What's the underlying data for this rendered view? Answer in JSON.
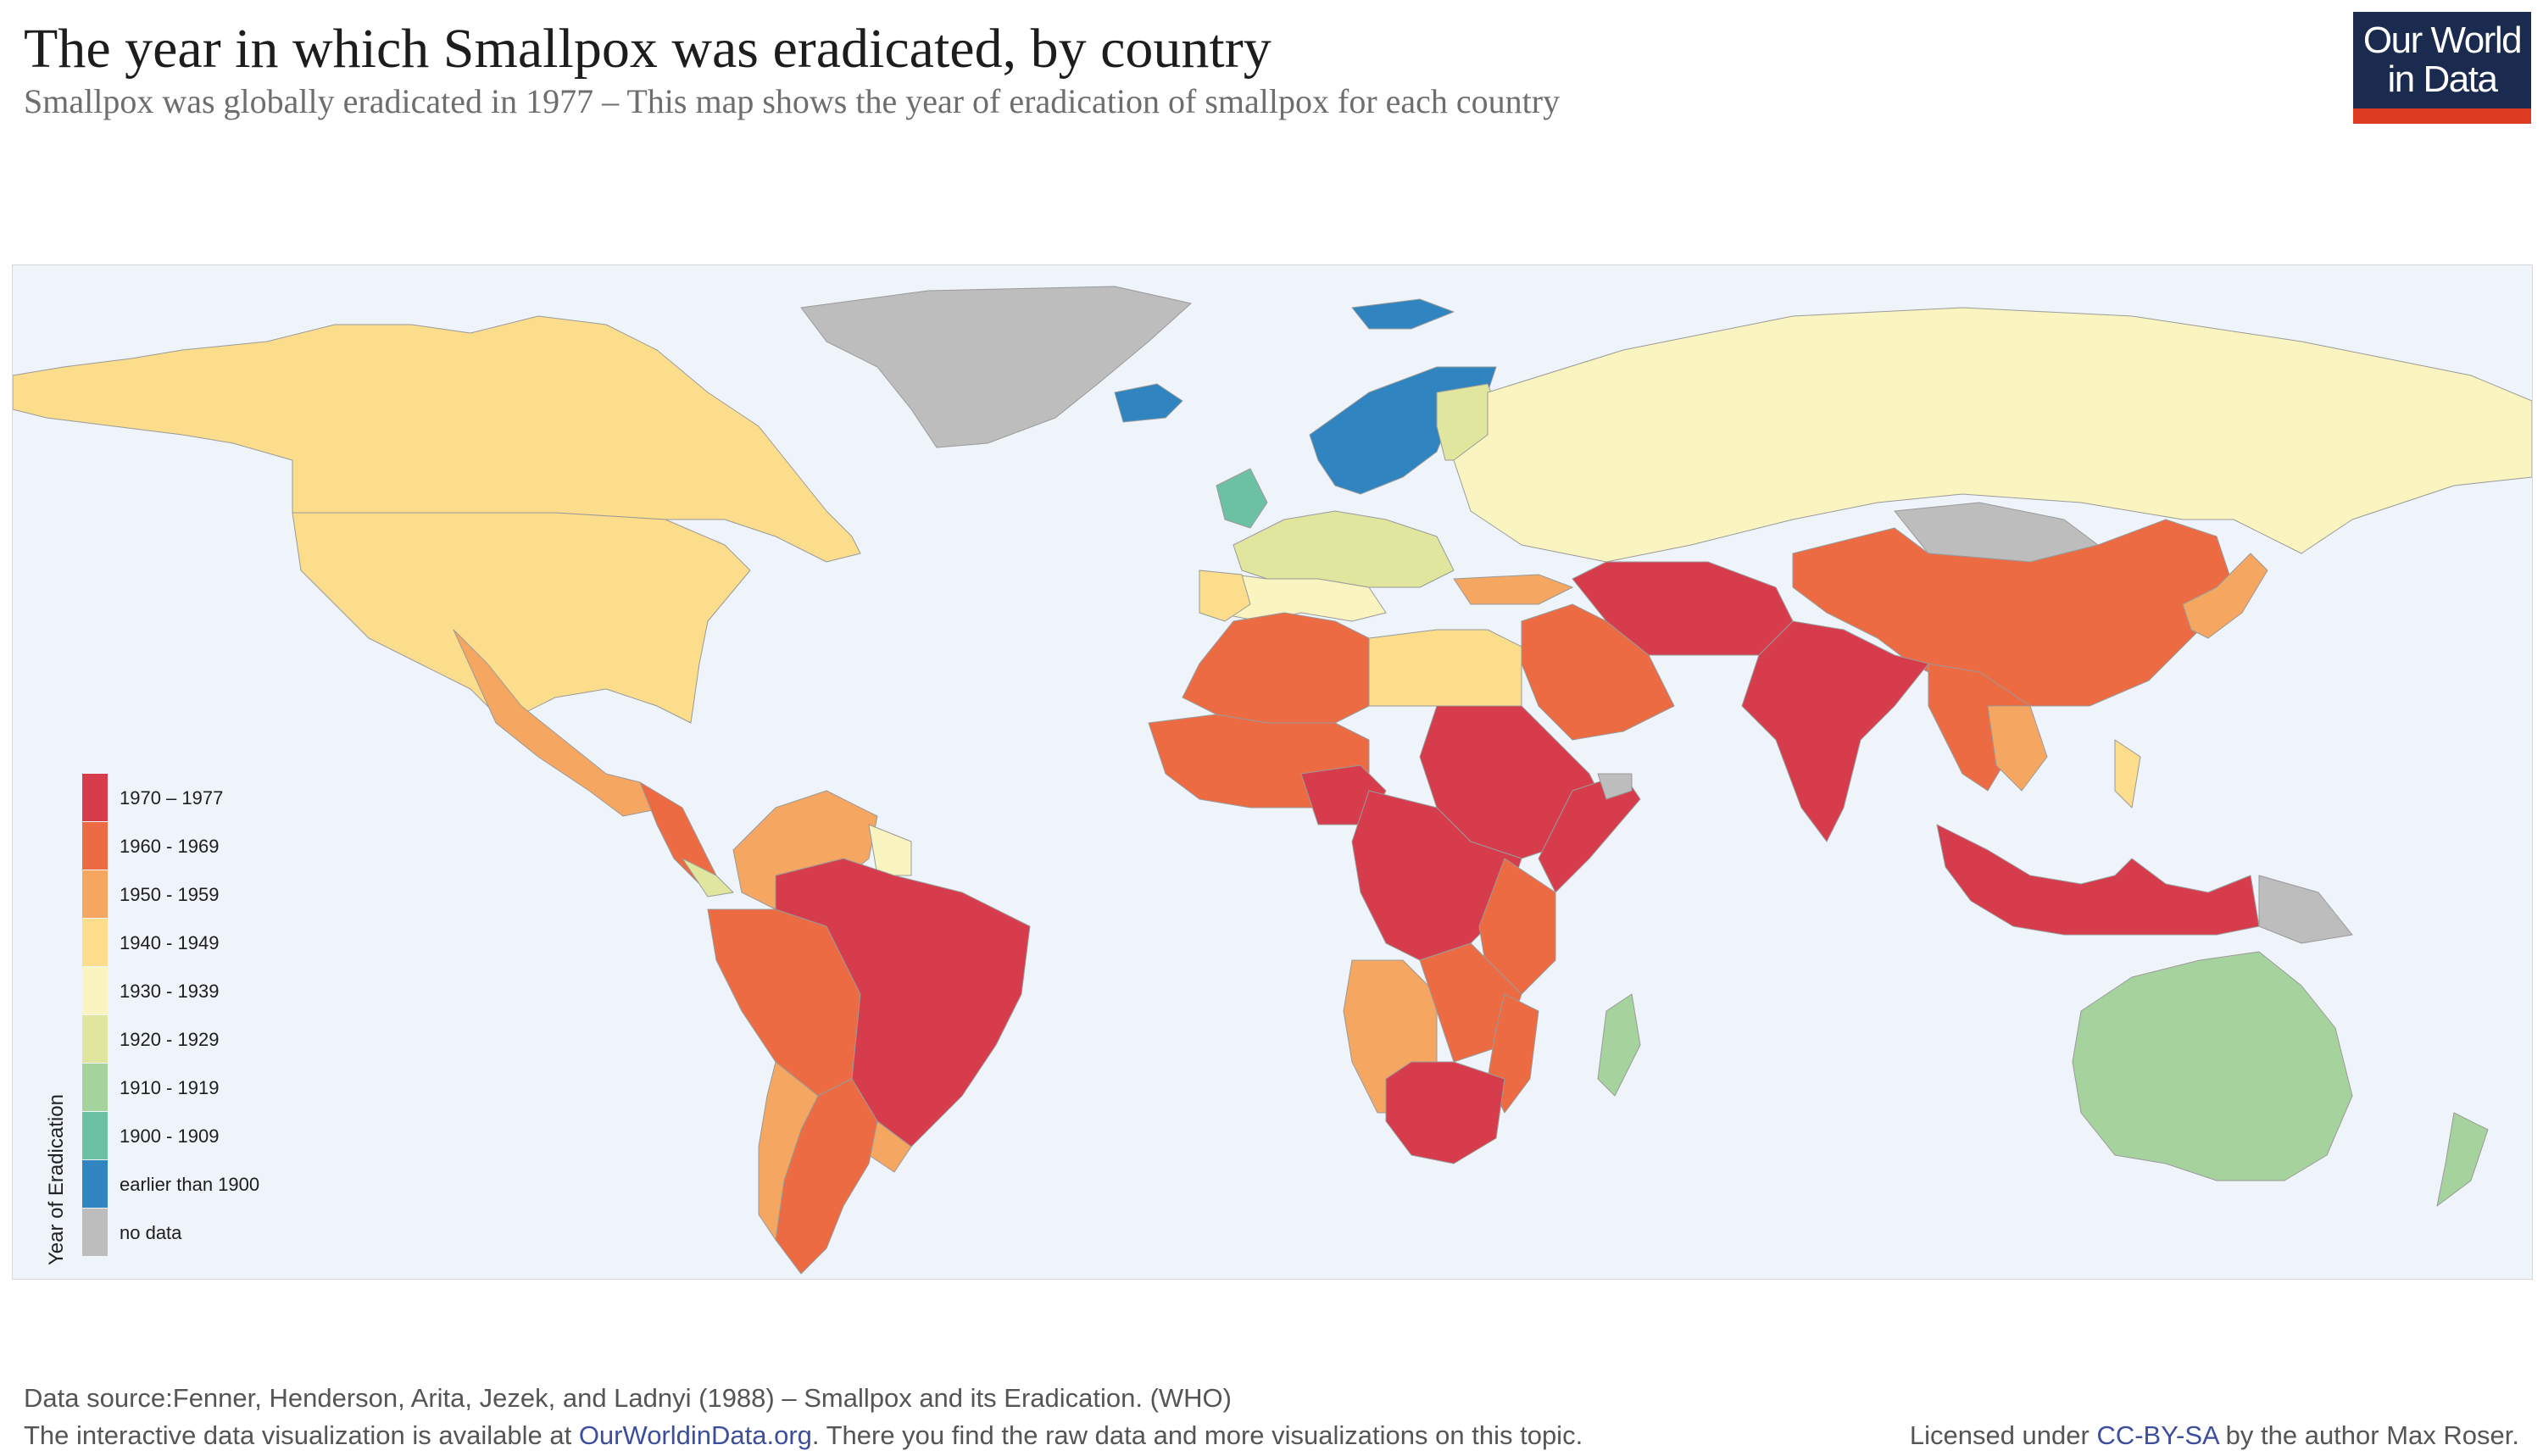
{
  "header": {
    "title": "The year in which Smallpox was eradicated, by country",
    "subtitle": "Smallpox was globally eradicated in 1977 – This map shows the year of eradication of smallpox for each country"
  },
  "logo": {
    "line1": "Our World",
    "line2": "in Data",
    "bar_color": "#dc3b22",
    "bg_color": "#1a2b4f"
  },
  "legend": {
    "title": "Year of Eradication",
    "items": [
      {
        "label": "1970 – 1977",
        "color": "#d73c4c"
      },
      {
        "label": "1960 - 1969",
        "color": "#ec6b42"
      },
      {
        "label": "1950 - 1959",
        "color": "#f5a660"
      },
      {
        "label": "1940 - 1949",
        "color": "#fbdd8b"
      },
      {
        "label": "1930 - 1939",
        "color": "#faf5c0"
      },
      {
        "label": "1920 - 1929",
        "color": "#e1e69f"
      },
      {
        "label": "1910 - 1919",
        "color": "#a6d39d"
      },
      {
        "label": "1900 - 1909",
        "color": "#6cc1a4"
      },
      {
        "label": "earlier than 1900",
        "color": "#3085c0"
      },
      {
        "label": "no data",
        "color": "#bdbdbd"
      }
    ]
  },
  "map": {
    "ocean_color": "#eef4f9"
  },
  "footer": {
    "source": "Data source:Fenner, Henderson, Arita, Jezek, and Ladnyi (1988) – Smallpox and its Eradication. (WHO)",
    "note_prefix": "The interactive data visualization is available at ",
    "note_link": "OurWorldinData.org",
    "note_suffix": ". There you find the raw data and more visualizations on this topic.",
    "license_prefix": "Licensed under ",
    "license_link": "CC-BY-SA",
    "license_suffix": " by the author Max Roser."
  }
}
